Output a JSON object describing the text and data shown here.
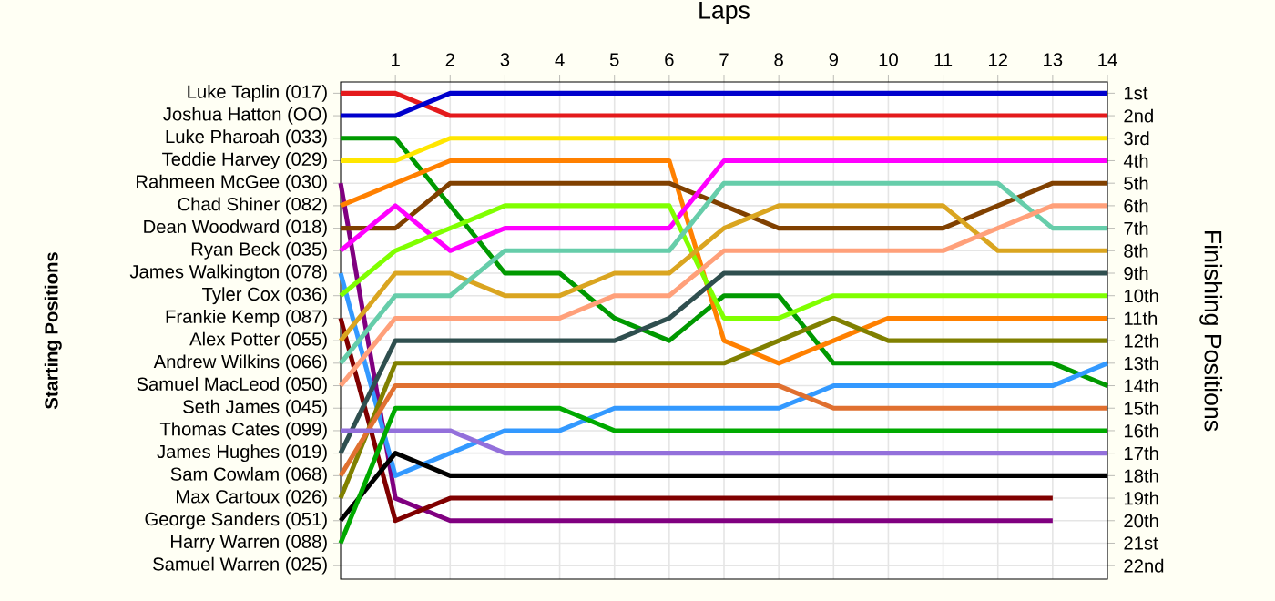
{
  "chart_data": {
    "type": "line",
    "xlabel": "Laps",
    "ylabel": "Finishing Positions",
    "x": [
      0,
      1,
      2,
      3,
      4,
      5,
      6,
      7,
      8,
      9,
      10,
      11,
      12,
      13,
      14
    ],
    "xlim": [
      0,
      14
    ],
    "xticks": [
      1,
      2,
      3,
      4,
      5,
      6,
      7,
      8,
      9,
      10,
      11,
      12,
      13,
      14
    ],
    "ylim": [
      22.6,
      0.5
    ],
    "yticks": [
      {
        "value": 1,
        "label": "1st"
      },
      {
        "value": 2,
        "label": "2nd"
      },
      {
        "value": 3,
        "label": "3rd"
      },
      {
        "value": 4,
        "label": "4th"
      },
      {
        "value": 5,
        "label": "5th"
      },
      {
        "value": 6,
        "label": "6th"
      },
      {
        "value": 7,
        "label": "7th"
      },
      {
        "value": 8,
        "label": "8th"
      },
      {
        "value": 9,
        "label": "9th"
      },
      {
        "value": 10,
        "label": "10th"
      },
      {
        "value": 11,
        "label": "11th"
      },
      {
        "value": 12,
        "label": "12th"
      },
      {
        "value": 13,
        "label": "13th"
      },
      {
        "value": 14,
        "label": "14th"
      },
      {
        "value": 15,
        "label": "15th"
      },
      {
        "value": 16,
        "label": "16th"
      },
      {
        "value": 17,
        "label": "17th"
      },
      {
        "value": 18,
        "label": "18th"
      },
      {
        "value": 19,
        "label": "19th"
      },
      {
        "value": 20,
        "label": "20th"
      },
      {
        "value": 21,
        "label": "21st"
      },
      {
        "value": 22,
        "label": "22nd"
      }
    ],
    "annotations": [
      "Starting Positions",
      "Luke Taplin (017)",
      "Joshua Hatton (OO)",
      "Luke Pharoah (033)",
      "Teddie Harvey (029)",
      "Rahmeen McGee (030)",
      "Chad Shiner (082)",
      "Dean Woodward (018)",
      "Ryan Beck (035)",
      "James Walkington (078)",
      "Tyler Cox (036)",
      "Frankie Kemp (087)",
      "Alex Potter (055)",
      "Andrew Wilkins (066)",
      "Samuel MacLeod (050)",
      "Seth James (045)",
      "Thomas Cates (099)",
      "James Hughes (019)",
      "Sam Cowlam (068)",
      "Max Cartoux (026)",
      "George Sanders (051)",
      "Harry Warren (088)",
      "Samuel Warren (025)"
    ],
    "grid": true,
    "series": [
      {
        "color": "#e41a1c",
        "values": [
          1,
          1,
          2,
          2,
          2,
          2,
          2,
          2,
          2,
          2,
          2,
          2,
          2,
          2,
          2
        ]
      },
      {
        "color": "#0000cc",
        "values": [
          2,
          2,
          1,
          1,
          1,
          1,
          1,
          1,
          1,
          1,
          1,
          1,
          1,
          1,
          1
        ]
      },
      {
        "color": "#009900",
        "values": [
          3,
          3,
          6,
          9,
          9,
          11,
          12,
          10,
          10,
          13,
          13,
          13,
          13,
          13,
          14
        ]
      },
      {
        "color": "#ffe600",
        "values": [
          4,
          4,
          3,
          3,
          3,
          3,
          3,
          3,
          3,
          3,
          3,
          3,
          3,
          3,
          3
        ]
      },
      {
        "color": "#800080",
        "values": [
          5,
          19,
          20,
          20,
          20,
          20,
          20,
          20,
          20,
          20,
          20,
          20,
          20,
          20,
          null
        ]
      },
      {
        "color": "#ff8000",
        "values": [
          6,
          5,
          4,
          4,
          4,
          4,
          4,
          12,
          13,
          12,
          11,
          11,
          11,
          11,
          11
        ]
      },
      {
        "color": "#804000",
        "values": [
          7,
          7,
          5,
          5,
          5,
          5,
          5,
          6,
          7,
          7,
          7,
          7,
          6,
          5,
          5
        ]
      },
      {
        "color": "#ff00ff",
        "values": [
          8,
          6,
          8,
          7,
          7,
          7,
          7,
          4,
          4,
          4,
          4,
          4,
          4,
          4,
          4
        ]
      },
      {
        "color": "#3399ff",
        "values": [
          9,
          18,
          17,
          16,
          16,
          15,
          15,
          15,
          15,
          14,
          14,
          14,
          14,
          14,
          13
        ]
      },
      {
        "color": "#80ff00",
        "values": [
          10,
          8,
          7,
          6,
          6,
          6,
          6,
          11,
          11,
          10,
          10,
          10,
          10,
          10,
          10
        ]
      },
      {
        "color": "#800000",
        "values": [
          11,
          20,
          19,
          19,
          19,
          19,
          19,
          19,
          19,
          19,
          19,
          19,
          19,
          19,
          null
        ]
      },
      {
        "color": "#daa520",
        "values": [
          12,
          9,
          9,
          10,
          10,
          9,
          9,
          7,
          6,
          6,
          6,
          6,
          8,
          8,
          8
        ]
      },
      {
        "color": "#66cdaa",
        "values": [
          13,
          10,
          10,
          8,
          8,
          8,
          8,
          5,
          5,
          5,
          5,
          5,
          5,
          7,
          7
        ]
      },
      {
        "color": "#ffa07a",
        "values": [
          14,
          11,
          11,
          11,
          11,
          10,
          10,
          8,
          8,
          8,
          8,
          8,
          7,
          6,
          6
        ]
      },
      {
        "color": "#2f4f4f",
        "values": [
          17,
          12,
          12,
          12,
          12,
          12,
          11,
          9,
          9,
          9,
          9,
          9,
          9,
          9,
          9
        ]
      },
      {
        "color": "#808000",
        "values": [
          19,
          13,
          13,
          13,
          13,
          13,
          13,
          13,
          12,
          11,
          12,
          12,
          12,
          12,
          12
        ]
      },
      {
        "color": "#e07030",
        "values": [
          18,
          14,
          14,
          14,
          14,
          14,
          14,
          14,
          14,
          15,
          15,
          15,
          15,
          15,
          15
        ]
      },
      {
        "color": "#9370db",
        "values": [
          16,
          16,
          16,
          17,
          17,
          17,
          17,
          17,
          17,
          17,
          17,
          17,
          17,
          17,
          17
        ]
      },
      {
        "color": "#000000",
        "values": [
          20,
          17,
          18,
          18,
          18,
          18,
          18,
          18,
          18,
          18,
          18,
          18,
          18,
          18,
          18
        ]
      },
      {
        "color": "#00aa00",
        "values": [
          21,
          15,
          15,
          15,
          15,
          16,
          16,
          16,
          16,
          16,
          16,
          16,
          16,
          16,
          16
        ]
      }
    ]
  }
}
